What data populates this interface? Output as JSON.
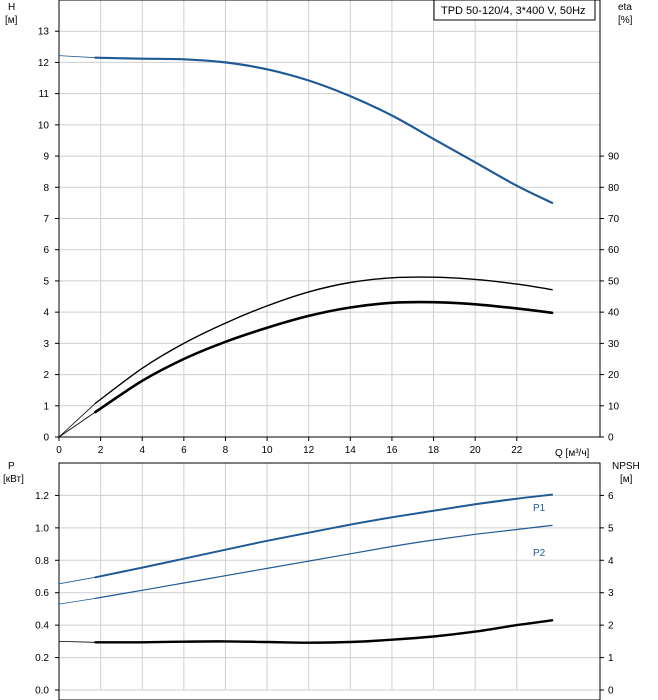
{
  "title": "TPD 50-120/4, 3*400 V, 50Hz",
  "chart_data": [
    {
      "type": "line",
      "panel": "upper",
      "left_axis": {
        "label": "H",
        "unit": "[м]",
        "range": [
          0,
          14
        ],
        "ticks": [
          0,
          1,
          2,
          3,
          4,
          5,
          6,
          7,
          8,
          9,
          10,
          11,
          12,
          13
        ]
      },
      "right_axis": {
        "label": "eta",
        "unit": "[%]",
        "range": [
          0,
          140
        ],
        "ticks": [
          0,
          10,
          20,
          30,
          40,
          50,
          60,
          70,
          80,
          90
        ]
      },
      "x_axis": {
        "label": "Q [м³/ч]",
        "range": [
          0,
          26
        ],
        "ticks": [
          0,
          2,
          4,
          6,
          8,
          10,
          12,
          14,
          16,
          18,
          20,
          22
        ]
      },
      "grid": true,
      "series": [
        {
          "id": "H",
          "axis": "left",
          "color": "#1f5a96",
          "width": 2.2,
          "ext_x": [
            0.0,
            1.75
          ],
          "ext_y": [
            12.22,
            12.15
          ],
          "x": [
            1.75,
            4,
            6,
            8,
            10,
            12,
            14,
            16,
            18,
            20,
            22,
            23.7
          ],
          "y": [
            12.15,
            12.12,
            12.1,
            12.0,
            11.78,
            11.42,
            10.92,
            10.3,
            9.55,
            8.8,
            8.05,
            7.5
          ]
        },
        {
          "id": "eta-total",
          "axis": "right",
          "color": "#000000",
          "width": 1.4,
          "ext_x": [
            0.0,
            1.75
          ],
          "ext_y": [
            0.0,
            10.8
          ],
          "x": [
            1.75,
            4,
            6,
            8,
            10,
            12,
            14,
            16,
            18,
            20,
            22,
            23.7
          ],
          "y": [
            10.8,
            22.0,
            30.0,
            36.5,
            42.0,
            46.5,
            49.5,
            51.0,
            51.2,
            50.5,
            49.0,
            47.2
          ]
        },
        {
          "id": "eta-pump",
          "axis": "right",
          "color": "#000000",
          "width": 2.6,
          "ext_x": [
            0.0,
            1.75
          ],
          "ext_y": [
            0.0,
            8.0
          ],
          "x": [
            1.75,
            4,
            6,
            8,
            10,
            12,
            14,
            16,
            18,
            20,
            22,
            23.7
          ],
          "y": [
            8.0,
            18.0,
            25.0,
            30.5,
            35.0,
            38.8,
            41.5,
            43.0,
            43.2,
            42.5,
            41.2,
            39.8
          ]
        }
      ]
    },
    {
      "type": "line",
      "panel": "lower",
      "left_axis": {
        "label": "P",
        "unit": "[кВт]",
        "range": [
          0,
          1.4
        ],
        "ticks": [
          "0.0",
          "0.2",
          "0.4",
          "0.6",
          "0.8",
          "1.0",
          "1.2"
        ]
      },
      "right_axis": {
        "label": "NPSH",
        "unit": "[м]",
        "range": [
          0,
          7
        ],
        "ticks": [
          0,
          1,
          2,
          3,
          4,
          5,
          6
        ]
      },
      "x_axis": {
        "range": [
          0,
          26
        ]
      },
      "grid": true,
      "series": [
        {
          "id": "P1",
          "name": "P1",
          "axis": "left",
          "color": "#1f5a96",
          "width": 2.0,
          "ext_x": [
            0.0,
            1.75
          ],
          "ext_y": [
            0.655,
            0.695
          ],
          "x": [
            1.75,
            4,
            6,
            8,
            10,
            12,
            14,
            16,
            18,
            20,
            22,
            23.7
          ],
          "y": [
            0.695,
            0.755,
            0.81,
            0.865,
            0.92,
            0.97,
            1.02,
            1.065,
            1.105,
            1.145,
            1.18,
            1.205
          ]
        },
        {
          "id": "P2",
          "name": "P2",
          "axis": "left",
          "color": "#1f5a96",
          "width": 1.2,
          "ext_x": [
            0.0,
            1.75
          ],
          "ext_y": [
            0.53,
            0.565
          ],
          "x": [
            1.75,
            4,
            6,
            8,
            10,
            12,
            14,
            16,
            18,
            20,
            22,
            23.7
          ],
          "y": [
            0.565,
            0.615,
            0.66,
            0.705,
            0.75,
            0.795,
            0.84,
            0.885,
            0.925,
            0.96,
            0.99,
            1.015
          ]
        },
        {
          "id": "NPSH",
          "axis": "right",
          "color": "#000000",
          "width": 2.4,
          "ext_x": [
            0.0,
            1.75
          ],
          "ext_y": [
            1.5,
            1.47
          ],
          "x": [
            1.75,
            4,
            6,
            8,
            10,
            12,
            14,
            16,
            18,
            20,
            22,
            23.7
          ],
          "y": [
            1.47,
            1.47,
            1.49,
            1.5,
            1.48,
            1.46,
            1.48,
            1.55,
            1.65,
            1.8,
            2.0,
            2.15
          ]
        }
      ]
    }
  ]
}
